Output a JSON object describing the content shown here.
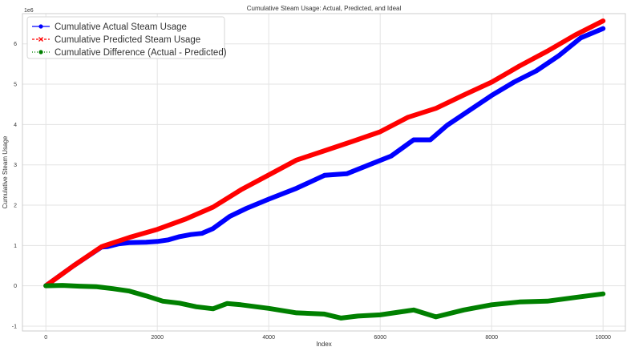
{
  "chart_data": {
    "type": "line",
    "title": "Cumulative Steam Usage: Actual, Predicted, and Ideal",
    "xlabel": "Index",
    "ylabel": "Cumulative Steam Usage",
    "y_offset_label": "1e6",
    "xlim": [
      -420,
      10400
    ],
    "ylim": [
      -1.12,
      6.75
    ],
    "x_ticks": [
      0,
      2000,
      4000,
      6000,
      8000,
      10000
    ],
    "y_ticks": [
      -1,
      0,
      1,
      2,
      3,
      4,
      5,
      6
    ],
    "grid": true,
    "legend_position": "top-left",
    "series": [
      {
        "name": "Cumulative Actual Steam Usage",
        "color": "#0000ff",
        "marker": "circle",
        "x": [
          0,
          500,
          1000,
          1100,
          1300,
          1500,
          1800,
          2000,
          2200,
          2400,
          2600,
          2800,
          3000,
          3300,
          3600,
          4000,
          4500,
          5000,
          5400,
          5800,
          6200,
          6600,
          6900,
          7200,
          7600,
          8000,
          8400,
          8800,
          9200,
          9600,
          10000
        ],
        "values": [
          0,
          0.5,
          0.96,
          0.97,
          1.04,
          1.07,
          1.08,
          1.1,
          1.14,
          1.22,
          1.27,
          1.3,
          1.42,
          1.72,
          1.92,
          2.15,
          2.42,
          2.74,
          2.78,
          3.0,
          3.22,
          3.62,
          3.62,
          3.98,
          4.35,
          4.72,
          5.05,
          5.33,
          5.7,
          6.15,
          6.38
        ]
      },
      {
        "name": "Cumulative Predicted Steam Usage",
        "color": "#ff0000",
        "marker": "x",
        "x": [
          0,
          500,
          1000,
          1500,
          2000,
          2500,
          3000,
          3500,
          4000,
          4500,
          5000,
          5500,
          6000,
          6500,
          7000,
          7500,
          8000,
          8500,
          9000,
          9500,
          10000
        ],
        "values": [
          0,
          0.5,
          0.97,
          1.2,
          1.4,
          1.65,
          1.95,
          2.38,
          2.75,
          3.12,
          3.35,
          3.58,
          3.82,
          4.18,
          4.4,
          4.73,
          5.05,
          5.45,
          5.82,
          6.22,
          6.57
        ]
      },
      {
        "name": "Cumulative Difference (Actual - Predicted)",
        "color": "#008000",
        "marker": "circle",
        "x": [
          0,
          300,
          600,
          900,
          1200,
          1500,
          1800,
          2100,
          2400,
          2700,
          3000,
          3250,
          3500,
          4000,
          4500,
          5000,
          5300,
          5600,
          6000,
          6600,
          7000,
          7500,
          8000,
          8500,
          9000,
          9500,
          10000
        ],
        "values": [
          0,
          0.01,
          -0.01,
          -0.02,
          -0.07,
          -0.13,
          -0.25,
          -0.38,
          -0.43,
          -0.52,
          -0.57,
          -0.44,
          -0.47,
          -0.56,
          -0.67,
          -0.7,
          -0.8,
          -0.75,
          -0.72,
          -0.6,
          -0.77,
          -0.6,
          -0.47,
          -0.4,
          -0.38,
          -0.29,
          -0.2
        ]
      }
    ]
  }
}
